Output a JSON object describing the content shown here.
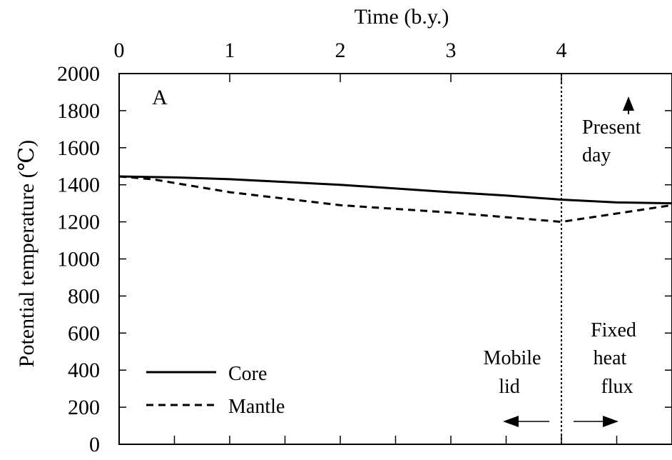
{
  "chart_data": {
    "type": "line",
    "panel_label": "A",
    "xlabel": "Time (b.y.)",
    "ylabel": "Potential temperature (℃)",
    "xlim": [
      0,
      5
    ],
    "ylim": [
      0,
      2000
    ],
    "x_ticks": [
      0,
      1,
      2,
      3,
      4
    ],
    "x_tick_labels": [
      "0",
      "1",
      "2",
      "3",
      "4"
    ],
    "x_minor_ticks": [
      0.5,
      1.5,
      2.5,
      3.5,
      4.5
    ],
    "y_ticks": [
      0,
      200,
      400,
      600,
      800,
      1000,
      1200,
      1400,
      1600,
      1800,
      2000
    ],
    "y_tick_labels": [
      "0",
      "200",
      "400",
      "600",
      "800",
      "1000",
      "1200",
      "1400",
      "1600",
      "1800",
      "2000"
    ],
    "grid": false,
    "legend_position": "bottom-left",
    "series": [
      {
        "name": "Core",
        "style": "solid",
        "x": [
          0,
          0.5,
          1,
          1.5,
          2,
          2.5,
          3,
          3.5,
          4,
          4.5,
          5
        ],
        "y": [
          1445,
          1440,
          1430,
          1415,
          1400,
          1380,
          1360,
          1342,
          1320,
          1305,
          1300
        ]
      },
      {
        "name": "Mantle",
        "style": "dashed",
        "x": [
          0,
          0.3,
          1,
          2,
          3,
          4,
          5
        ],
        "y": [
          1445,
          1430,
          1360,
          1290,
          1250,
          1200,
          1290
        ]
      }
    ],
    "vline": {
      "x": 4,
      "style": "dotted"
    },
    "annotations": {
      "present_day": [
        "Present",
        "day"
      ],
      "mobile_lid": [
        "Mobile",
        "lid"
      ],
      "fixed_heat_flux": [
        "Fixed",
        "heat",
        "flux"
      ]
    }
  }
}
